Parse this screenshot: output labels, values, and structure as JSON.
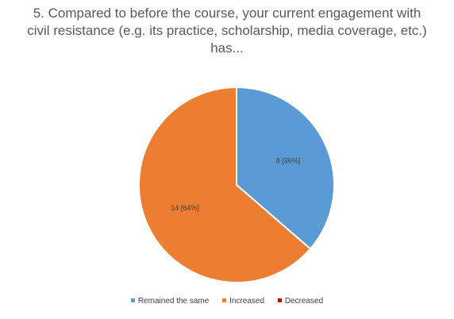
{
  "chart_data": {
    "type": "pie",
    "title_lines": [
      "5. Compared to before the course, your current engagement with",
      "civil resistance (e.g. its practice, scholarship, media coverage, etc.)",
      "has..."
    ],
    "title": "5. Compared to before the course, your current engagement with civil resistance (e.g. its practice, scholarship, media coverage, etc.) has...",
    "slices": [
      {
        "name": "Remained the same",
        "value": 8,
        "label": "8 [36%]",
        "color": "#5B9BD5"
      },
      {
        "name": "Increased",
        "value": 14,
        "label": "14 [64%]",
        "color": "#ED7D31"
      },
      {
        "name": "Decreased",
        "value": 0,
        "label": "",
        "color": "#C00000"
      }
    ],
    "legend_position": "bottom"
  }
}
